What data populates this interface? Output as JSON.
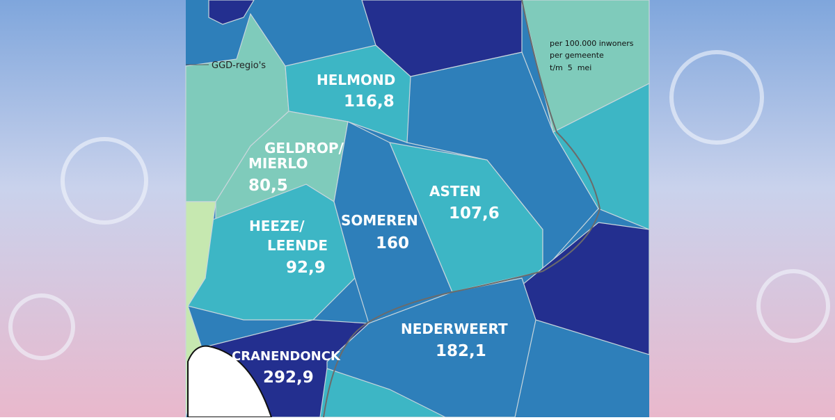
{
  "map": {
    "region_label": "GGD-regio's",
    "legend_note": [
      "per 100.000 inwoners",
      "per gemeente",
      "t/m  5  mei"
    ],
    "municipalities": [
      {
        "name": "HELMOND",
        "value": "116,8"
      },
      {
        "name": "GELDROP/",
        "name2": "MIERLO",
        "value": "80,5"
      },
      {
        "name": "HEEZE/",
        "name2": "LEENDE",
        "value": "92,9"
      },
      {
        "name": "SOMEREN",
        "value": "160"
      },
      {
        "name": "ASTEN",
        "value": "107,6"
      },
      {
        "name": "NEDERWEERT",
        "value": "182,1"
      },
      {
        "name": "CRANENDONCK",
        "value": "292,9"
      }
    ]
  }
}
